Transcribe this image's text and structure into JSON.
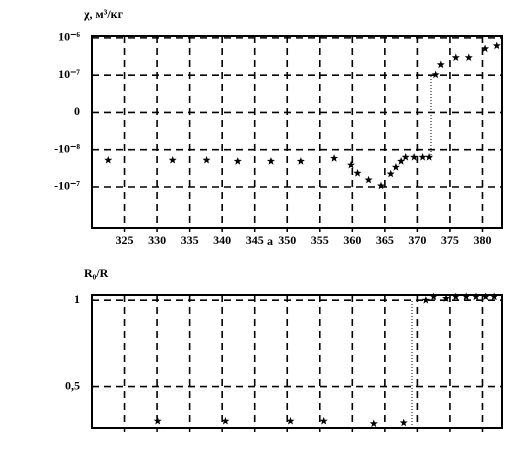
{
  "chart_data": [
    {
      "type": "scatter",
      "ylabel": "χ, м³/кг",
      "xlabel": "a",
      "x": [
        322.5,
        332.4,
        337.6,
        342.4,
        347.5,
        352.1,
        357.2,
        359.8,
        360.8,
        362.5,
        364.4,
        365.9,
        366.7,
        367.5,
        368.2,
        369.5,
        370.8,
        371.8,
        372.8,
        373.6,
        375.9,
        377.9,
        380.4,
        382.2
      ],
      "values": [
        -1.28,
        -1.28,
        -1.28,
        -1.31,
        -1.31,
        -1.31,
        -1.23,
        -1.41,
        -1.63,
        -1.81,
        -1.97,
        -1.65,
        -1.47,
        -1.31,
        -1.2,
        -1.2,
        -1.2,
        -1.2,
        1.01,
        1.28,
        1.47,
        1.47,
        1.71,
        1.79
      ],
      "color": "#000000",
      "xlim": [
        320,
        383
      ],
      "xticks": [
        325,
        330,
        335,
        340,
        345,
        350,
        355,
        360,
        365,
        370,
        375,
        380
      ],
      "xtick_labels": true,
      "ylim": [
        -3.1,
        2.05
      ],
      "yticks": [
        {
          "value": 2,
          "label": "10⁻⁶"
        },
        {
          "value": 1,
          "label": "10⁻⁷"
        },
        0,
        {
          "value": -1,
          "label": "-10⁻⁸"
        },
        {
          "value": -2,
          "label": "-10⁻⁷"
        }
      ],
      "grid": true
    },
    {
      "type": "scatter",
      "ylabel": "R₀/R",
      "x": [
        330.1,
        340.5,
        350.5,
        355.6,
        363.3,
        367.9,
        371.3,
        372.5,
        374.4,
        375.9,
        377.5,
        379.0,
        380.5,
        381.8
      ],
      "values": [
        0.3,
        0.3,
        0.3,
        0.3,
        0.285,
        0.29,
        1.0,
        1.02,
        1.01,
        1.02,
        1.02,
        1.02,
        1.02,
        1.02
      ],
      "color": "#000000",
      "xlim": [
        320,
        383
      ],
      "xticks": [
        325,
        330,
        335,
        340,
        345,
        350,
        355,
        360,
        365,
        370,
        375,
        380
      ],
      "xtick_labels": false,
      "ylim": [
        0.26,
        1.03
      ],
      "yticks": [
        1,
        {
          "value": 0.5,
          "label": "0,5"
        }
      ],
      "grid": true
    }
  ]
}
